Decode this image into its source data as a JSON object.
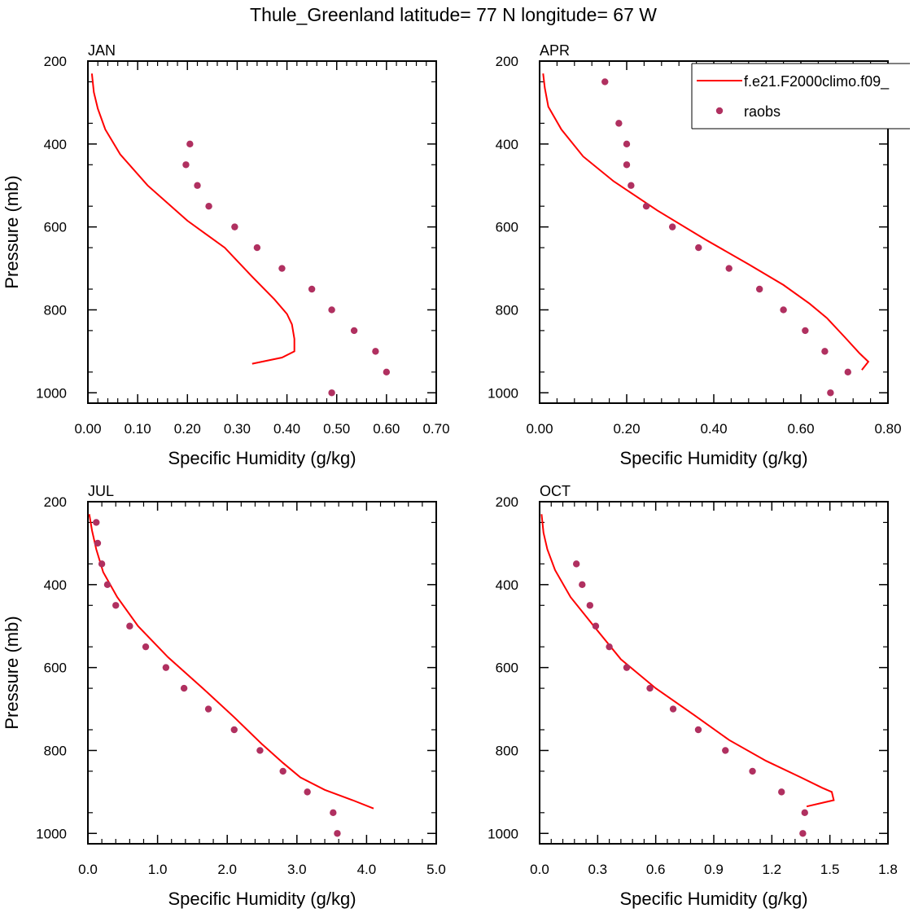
{
  "title": "Thule_Greenland  latitude= 77 N longitude= 67 W",
  "colors": {
    "model": "#ff0000",
    "obs": "#b03060",
    "axis": "#000000"
  },
  "legend": {
    "model_label": "f.e21.F2000climo.f09_",
    "obs_label": "raobs",
    "panel": "APR"
  },
  "chart_data": [
    {
      "type": "line",
      "panel": "JAN",
      "xlabel": "Specific Humidity (g/kg)",
      "ylabel": "Pressure (mb)",
      "xlim": [
        0,
        0.7
      ],
      "ylim": [
        200,
        1025
      ],
      "xticks": [
        "0.00",
        "0.10",
        "0.20",
        "0.30",
        "0.40",
        "0.50",
        "0.60",
        "0.70"
      ],
      "yticks": [
        "200",
        "400",
        "600",
        "800",
        "1000"
      ],
      "model": {
        "x": [
          0.008,
          0.012,
          0.02,
          0.035,
          0.065,
          0.12,
          0.2,
          0.275,
          0.33,
          0.375,
          0.4,
          0.41,
          0.415,
          0.415,
          0.39,
          0.33
        ],
        "y": [
          230,
          275,
          315,
          365,
          425,
          500,
          585,
          650,
          720,
          775,
          810,
          835,
          870,
          900,
          915,
          930
        ]
      },
      "obs": {
        "x": [
          0.205,
          0.197,
          0.22,
          0.243,
          0.295,
          0.34,
          0.39,
          0.45,
          0.49,
          0.535,
          0.578,
          0.6,
          0.49
        ],
        "y": [
          400,
          450,
          500,
          550,
          600,
          650,
          700,
          750,
          800,
          850,
          900,
          950,
          1000
        ]
      }
    },
    {
      "type": "line",
      "panel": "APR",
      "xlabel": "Specific Humidity (g/kg)",
      "ylabel": "",
      "xlim": [
        0,
        0.8
      ],
      "ylim": [
        200,
        1025
      ],
      "xticks": [
        "0.00",
        "0.20",
        "0.40",
        "0.60",
        "0.80"
      ],
      "yticks": [
        "200",
        "400",
        "600",
        "800",
        "1000"
      ],
      "model": {
        "x": [
          0.008,
          0.012,
          0.02,
          0.05,
          0.1,
          0.17,
          0.27,
          0.38,
          0.48,
          0.56,
          0.62,
          0.66,
          0.7,
          0.735,
          0.755,
          0.74
        ],
        "y": [
          230,
          265,
          310,
          365,
          430,
          490,
          560,
          630,
          690,
          740,
          785,
          820,
          865,
          905,
          925,
          945
        ]
      },
      "obs": {
        "x": [
          0.15,
          0.182,
          0.2,
          0.2,
          0.21,
          0.245,
          0.305,
          0.365,
          0.435,
          0.505,
          0.56,
          0.61,
          0.655,
          0.708,
          0.668
        ],
        "y": [
          250,
          350,
          400,
          450,
          500,
          550,
          600,
          650,
          700,
          750,
          800,
          850,
          900,
          950,
          1000
        ]
      }
    },
    {
      "type": "line",
      "panel": "JUL",
      "xlabel": "Specific Humidity (g/kg)",
      "ylabel": "Pressure (mb)",
      "xlim": [
        0,
        5.0
      ],
      "ylim": [
        200,
        1025
      ],
      "xticks": [
        "0.0",
        "1.0",
        "2.0",
        "3.0",
        "4.0",
        "5.0"
      ],
      "yticks": [
        "200",
        "400",
        "600",
        "800",
        "1000"
      ],
      "model": {
        "x": [
          0.02,
          0.06,
          0.12,
          0.22,
          0.42,
          0.72,
          1.15,
          1.65,
          2.1,
          2.5,
          2.8,
          3.05,
          3.4,
          3.8,
          4.1
        ],
        "y": [
          230,
          270,
          315,
          370,
          430,
          500,
          575,
          650,
          720,
          785,
          830,
          865,
          895,
          920,
          940
        ]
      },
      "obs": {
        "x": [
          0.12,
          0.14,
          0.2,
          0.28,
          0.4,
          0.6,
          0.83,
          1.12,
          1.38,
          1.73,
          2.1,
          2.47,
          2.8,
          3.15,
          3.52,
          3.58
        ],
        "y": [
          250,
          300,
          350,
          400,
          450,
          500,
          550,
          600,
          650,
          700,
          750,
          800,
          850,
          900,
          950,
          1000
        ]
      }
    },
    {
      "type": "line",
      "panel": "OCT",
      "xlabel": "Specific Humidity (g/kg)",
      "ylabel": "",
      "xlim": [
        0,
        1.8
      ],
      "ylim": [
        200,
        1025
      ],
      "xticks": [
        "0.0",
        "0.3",
        "0.6",
        "0.9",
        "1.2",
        "1.5",
        "1.8"
      ],
      "yticks": [
        "200",
        "400",
        "600",
        "800",
        "1000"
      ],
      "model": {
        "x": [
          0.01,
          0.02,
          0.04,
          0.08,
          0.16,
          0.28,
          0.42,
          0.6,
          0.8,
          0.98,
          1.17,
          1.35,
          1.46,
          1.51,
          1.52,
          1.38
        ],
        "y": [
          230,
          275,
          315,
          365,
          430,
          500,
          580,
          650,
          715,
          775,
          825,
          865,
          890,
          900,
          920,
          935
        ]
      },
      "obs": {
        "x": [
          0.19,
          0.22,
          0.26,
          0.29,
          0.36,
          0.45,
          0.57,
          0.69,
          0.82,
          0.96,
          1.1,
          1.25,
          1.37,
          1.36
        ],
        "y": [
          350,
          400,
          450,
          500,
          550,
          600,
          650,
          700,
          750,
          800,
          850,
          900,
          950,
          1000
        ]
      }
    }
  ]
}
